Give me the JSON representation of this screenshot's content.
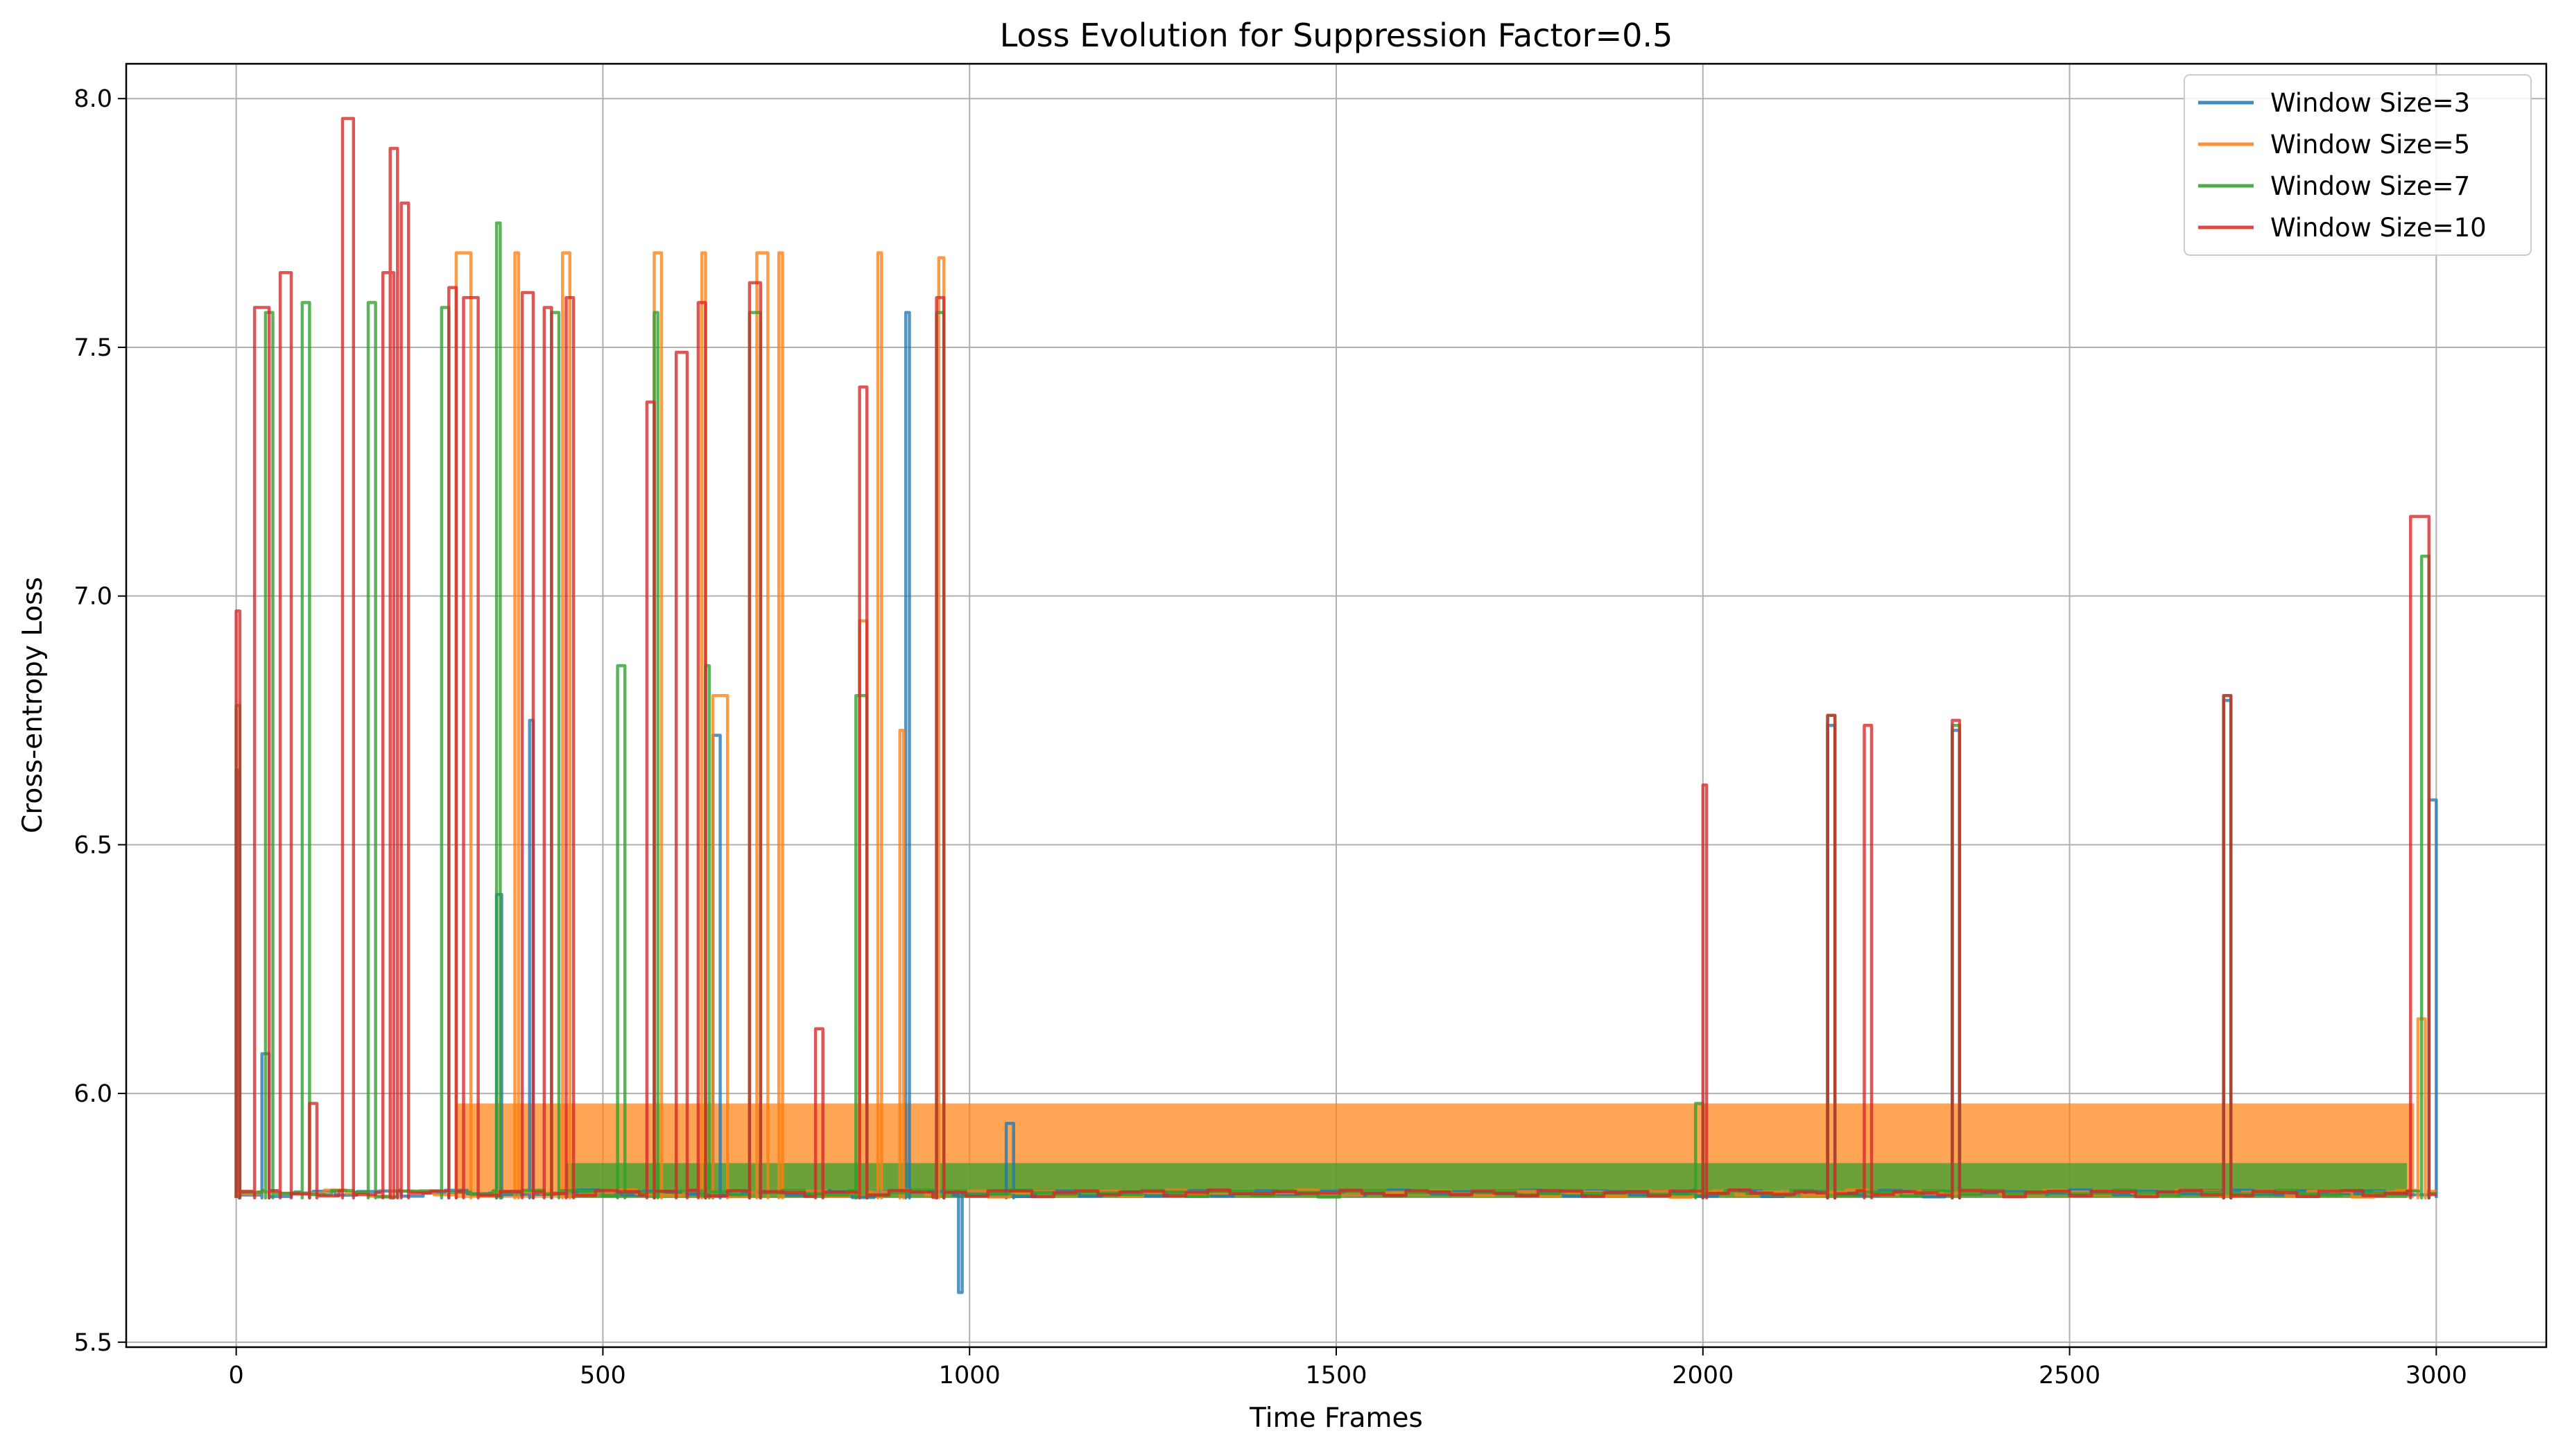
{
  "chart_data": {
    "type": "line",
    "title": "Loss Evolution for Suppression Factor=0.5",
    "xlabel": "Time Frames",
    "ylabel": "Cross-entropy Loss",
    "xlim": [
      -150,
      3150
    ],
    "ylim": [
      5.49,
      8.07
    ],
    "x_ticks": [
      0,
      500,
      1000,
      1500,
      2000,
      2500,
      3000
    ],
    "y_ticks": [
      5.5,
      6.0,
      6.5,
      7.0,
      7.5,
      8.0
    ],
    "x_tick_labels": [
      "0",
      "500",
      "1000",
      "1500",
      "2000",
      "2500",
      "3000"
    ],
    "y_tick_labels": [
      "5.5",
      "6.0",
      "6.5",
      "7.0",
      "7.5",
      "8.0"
    ],
    "grid": true,
    "legend_position": "top-right",
    "baseline": 5.79,
    "series": [
      {
        "name": "Window Size=3",
        "color": "#1f77b4",
        "spikes": [
          [
            0,
            4,
            6.65
          ],
          [
            35,
            45,
            6.08
          ],
          [
            355,
            362,
            6.4
          ],
          [
            400,
            405,
            6.75
          ],
          [
            650,
            660,
            6.72
          ],
          [
            913,
            918,
            7.57
          ],
          [
            985,
            990,
            5.6
          ],
          [
            1050,
            1060,
            5.94
          ],
          [
            2170,
            2180,
            6.74
          ],
          [
            2340,
            2350,
            6.73
          ],
          [
            2710,
            2720,
            6.79
          ],
          [
            2990,
            3000,
            6.59
          ]
        ]
      },
      {
        "name": "Window Size=5",
        "color": "#ff7f0e",
        "spikes": [
          [
            300,
            320,
            7.69
          ],
          [
            380,
            385,
            7.69
          ],
          [
            445,
            455,
            7.69
          ],
          [
            570,
            580,
            7.69
          ],
          [
            635,
            640,
            7.69
          ],
          [
            650,
            670,
            6.8
          ],
          [
            710,
            725,
            7.69
          ],
          [
            740,
            745,
            7.69
          ],
          [
            850,
            860,
            6.95
          ],
          [
            875,
            880,
            7.69
          ],
          [
            905,
            910,
            6.73
          ],
          [
            958,
            965,
            7.68
          ],
          [
            2975,
            2985,
            6.15
          ]
        ],
        "band": {
          "x": [
            300,
            2970
          ],
          "y": [
            5.79,
            5.98
          ]
        }
      },
      {
        "name": "Window Size=7",
        "color": "#2ca02c",
        "spikes": [
          [
            0,
            5,
            6.78
          ],
          [
            40,
            50,
            7.57
          ],
          [
            90,
            100,
            7.59
          ],
          [
            180,
            190,
            7.59
          ],
          [
            280,
            290,
            7.58
          ],
          [
            355,
            360,
            7.75
          ],
          [
            430,
            440,
            7.57
          ],
          [
            520,
            530,
            6.86
          ],
          [
            570,
            575,
            7.57
          ],
          [
            640,
            645,
            6.86
          ],
          [
            700,
            715,
            7.57
          ],
          [
            845,
            860,
            6.8
          ],
          [
            955,
            965,
            7.57
          ],
          [
            1990,
            2000,
            5.98
          ],
          [
            2170,
            2180,
            6.76
          ],
          [
            2340,
            2350,
            6.74
          ],
          [
            2710,
            2720,
            6.8
          ],
          [
            2980,
            2990,
            7.08
          ]
        ],
        "band": {
          "x": [
            450,
            2960
          ],
          "y": [
            5.79,
            5.86
          ]
        }
      },
      {
        "name": "Window Size=10",
        "color": "#d62728",
        "spikes": [
          [
            0,
            5,
            6.97
          ],
          [
            25,
            45,
            7.58
          ],
          [
            60,
            75,
            7.65
          ],
          [
            100,
            110,
            5.98
          ],
          [
            145,
            160,
            7.96
          ],
          [
            200,
            215,
            7.65
          ],
          [
            210,
            220,
            7.9
          ],
          [
            225,
            235,
            7.79
          ],
          [
            290,
            300,
            7.62
          ],
          [
            310,
            330,
            7.6
          ],
          [
            390,
            405,
            7.61
          ],
          [
            420,
            430,
            7.58
          ],
          [
            450,
            460,
            7.6
          ],
          [
            560,
            570,
            7.39
          ],
          [
            600,
            615,
            7.49
          ],
          [
            630,
            640,
            7.59
          ],
          [
            700,
            715,
            7.63
          ],
          [
            790,
            800,
            6.13
          ],
          [
            850,
            860,
            7.42
          ],
          [
            955,
            965,
            7.6
          ],
          [
            2000,
            2005,
            6.62
          ],
          [
            2170,
            2180,
            6.76
          ],
          [
            2220,
            2230,
            6.74
          ],
          [
            2340,
            2350,
            6.75
          ],
          [
            2710,
            2720,
            6.8
          ],
          [
            2965,
            2990,
            7.16
          ]
        ]
      }
    ]
  }
}
